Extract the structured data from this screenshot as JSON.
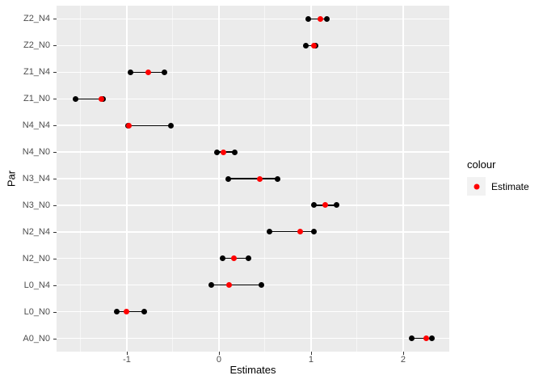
{
  "colors": {
    "panel_bg": "#EBEBEB",
    "grid": "#FFFFFF",
    "endpoint": "#000000",
    "estimate": "#FF0000",
    "axis_text": "#4D4D4D",
    "axis_title": "#000000",
    "legend_key_bg": "#F2F2F2"
  },
  "chart_data": {
    "type": "scatter",
    "subtype": "dot-and-range (pointrange, horizontal)",
    "title": "",
    "xlabel": "Estimates",
    "ylabel": "Par",
    "xlim": [
      -1.763,
      2.5
    ],
    "x_major_ticks": [
      -1,
      0,
      1,
      2
    ],
    "x_tick_labels": [
      "-1",
      "0",
      "1",
      "2"
    ],
    "x_minor_gridlines": [
      -1.5,
      -0.5,
      0.5,
      1.5
    ],
    "grid": "on",
    "legend_position": "right",
    "categories_top_to_bottom": [
      "Z2_N4",
      "Z2_N0",
      "Z1_N4",
      "Z1_N0",
      "N4_N4",
      "N4_N0",
      "N3_N4",
      "N3_N0",
      "N2_N4",
      "N2_N0",
      "L0_N4",
      "L0_N0",
      "A0_N0"
    ],
    "rows": [
      {
        "par": "Z2_N4",
        "low": 0.97,
        "estimate": 1.1,
        "high": 1.17
      },
      {
        "par": "Z2_N0",
        "low": 0.94,
        "estimate": 1.03,
        "high": 1.05
      },
      {
        "par": "Z1_N4",
        "low": -0.96,
        "estimate": -0.77,
        "high": -0.59
      },
      {
        "par": "Z1_N0",
        "low": -1.56,
        "estimate": -1.28,
        "high": -1.26
      },
      {
        "par": "N4_N4",
        "low": -0.99,
        "estimate": -0.98,
        "high": -0.52
      },
      {
        "par": "N4_N0",
        "low": -0.02,
        "estimate": 0.05,
        "high": 0.17
      },
      {
        "par": "N3_N4",
        "low": 0.1,
        "estimate": 0.44,
        "high": 0.64
      },
      {
        "par": "N3_N0",
        "low": 1.03,
        "estimate": 1.15,
        "high": 1.28
      },
      {
        "par": "N2_N4",
        "low": 0.55,
        "estimate": 0.88,
        "high": 1.03
      },
      {
        "par": "N2_N0",
        "low": 0.04,
        "estimate": 0.16,
        "high": 0.32
      },
      {
        "par": "L0_N4",
        "low": -0.08,
        "estimate": 0.11,
        "high": 0.46
      },
      {
        "par": "L0_N0",
        "low": -1.11,
        "estimate": -1.0,
        "high": -0.81
      },
      {
        "par": "A0_N0",
        "low": 2.09,
        "estimate": 2.25,
        "high": 2.31
      }
    ],
    "legend": {
      "title": "colour",
      "items": [
        {
          "label": "Estimate",
          "color": "#FF0000"
        }
      ]
    }
  }
}
